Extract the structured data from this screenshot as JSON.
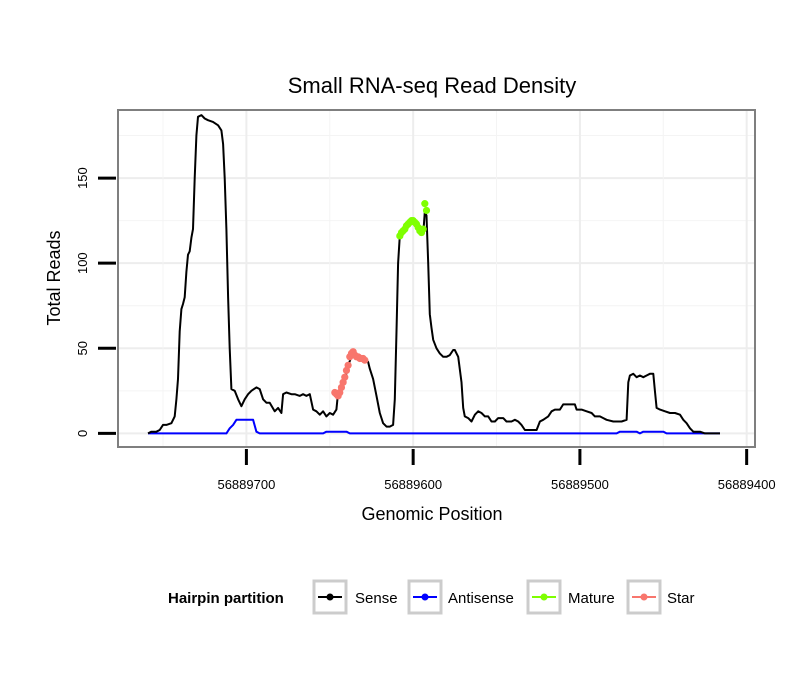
{
  "chart_data": {
    "type": "line",
    "title": "Small RNA-seq Read Density",
    "xlabel": "Genomic Position",
    "ylabel": "Total Reads",
    "x_reversed": true,
    "xlim": [
      56889777,
      56889395
    ],
    "ylim": [
      -8,
      190
    ],
    "xticks": [
      56889700,
      56889600,
      56889500,
      56889400
    ],
    "xtick_labels": [
      "56889700",
      "56889600",
      "56889500",
      "56889400"
    ],
    "yticks": [
      0,
      50,
      100,
      150
    ],
    "ytick_labels": [
      "0",
      "50",
      "100",
      "150"
    ],
    "grid": true,
    "legend": {
      "title": "Hairpin partition",
      "placement": "bottom",
      "entries": [
        {
          "name": "Sense",
          "color": "#000000"
        },
        {
          "name": "Antisense",
          "color": "#0000ff"
        },
        {
          "name": "Mature",
          "color": "#7fff00"
        },
        {
          "name": "Star",
          "color": "#f8766d"
        }
      ]
    },
    "series": [
      {
        "name": "Sense",
        "color": "#000000",
        "style": "line",
        "points": [
          [
            56889759,
            0
          ],
          [
            56889757,
            1
          ],
          [
            56889754,
            1
          ],
          [
            56889752,
            2
          ],
          [
            56889750,
            5
          ],
          [
            56889748,
            5
          ],
          [
            56889745,
            6
          ],
          [
            56889743,
            10
          ],
          [
            56889742,
            20
          ],
          [
            56889741,
            32
          ],
          [
            56889740,
            60
          ],
          [
            56889739,
            73
          ],
          [
            56889738,
            76
          ],
          [
            56889737,
            80
          ],
          [
            56889736,
            95
          ],
          [
            56889735,
            105
          ],
          [
            56889734,
            107
          ],
          [
            56889733,
            115
          ],
          [
            56889732,
            120
          ],
          [
            56889731,
            150
          ],
          [
            56889730,
            175
          ],
          [
            56889729,
            186
          ],
          [
            56889727,
            187
          ],
          [
            56889725,
            185
          ],
          [
            56889723,
            184
          ],
          [
            56889720,
            183
          ],
          [
            56889717,
            181
          ],
          [
            56889715,
            178
          ],
          [
            56889714,
            170
          ],
          [
            56889713,
            150
          ],
          [
            56889712,
            120
          ],
          [
            56889711,
            80
          ],
          [
            56889710,
            50
          ],
          [
            56889709,
            26
          ],
          [
            56889707,
            25
          ],
          [
            56889705,
            20
          ],
          [
            56889703,
            16
          ],
          [
            56889701,
            20
          ],
          [
            56889699,
            23
          ],
          [
            56889697,
            25
          ],
          [
            56889694,
            27
          ],
          [
            56889692,
            26
          ],
          [
            56889690,
            20
          ],
          [
            56889688,
            18
          ],
          [
            56889686,
            18
          ],
          [
            56889683,
            13
          ],
          [
            56889681,
            15
          ],
          [
            56889679,
            12
          ],
          [
            56889678,
            23
          ],
          [
            56889676,
            24
          ],
          [
            56889673,
            23
          ],
          [
            56889671,
            23
          ],
          [
            56889668,
            22
          ],
          [
            56889666,
            23
          ],
          [
            56889664,
            22
          ],
          [
            56889662,
            23
          ],
          [
            56889660,
            14
          ],
          [
            56889658,
            13
          ],
          [
            56889656,
            11
          ],
          [
            56889654,
            13
          ],
          [
            56889652,
            10
          ],
          [
            56889650,
            12
          ],
          [
            56889648,
            11
          ],
          [
            56889646,
            14
          ],
          [
            56889645,
            24
          ],
          [
            56889643,
            27
          ],
          [
            56889641,
            30
          ],
          [
            56889640,
            36
          ],
          [
            56889639,
            40
          ],
          [
            56889637,
            45
          ],
          [
            56889636,
            48
          ],
          [
            56889634,
            45
          ],
          [
            56889632,
            44
          ],
          [
            56889630,
            44
          ],
          [
            56889628,
            43
          ],
          [
            56889627,
            42
          ],
          [
            56889626,
            38
          ],
          [
            56889624,
            32
          ],
          [
            56889622,
            22
          ],
          [
            56889620,
            12
          ],
          [
            56889618,
            6
          ],
          [
            56889616,
            4
          ],
          [
            56889614,
            4
          ],
          [
            56889612,
            5
          ],
          [
            56889611,
            20
          ],
          [
            56889610,
            60
          ],
          [
            56889609,
            100
          ],
          [
            56889608,
            116
          ],
          [
            56889606,
            119
          ],
          [
            56889604,
            122
          ],
          [
            56889602,
            124
          ],
          [
            56889600,
            124
          ],
          [
            56889598,
            121
          ],
          [
            56889596,
            118
          ],
          [
            56889594,
            117
          ],
          [
            56889593,
            130
          ],
          [
            56889592,
            128
          ],
          [
            56889591,
            100
          ],
          [
            56889590,
            70
          ],
          [
            56889589,
            62
          ],
          [
            56889588,
            55
          ],
          [
            56889586,
            50
          ],
          [
            56889584,
            47
          ],
          [
            56889582,
            45
          ],
          [
            56889580,
            45
          ],
          [
            56889578,
            46
          ],
          [
            56889576,
            49
          ],
          [
            56889575,
            49
          ],
          [
            56889573,
            45
          ],
          [
            56889571,
            30
          ],
          [
            56889570,
            15
          ],
          [
            56889569,
            10
          ],
          [
            56889567,
            9
          ],
          [
            56889565,
            7
          ],
          [
            56889563,
            11
          ],
          [
            56889561,
            13
          ],
          [
            56889559,
            12
          ],
          [
            56889557,
            10
          ],
          [
            56889555,
            10
          ],
          [
            56889553,
            7
          ],
          [
            56889551,
            7
          ],
          [
            56889549,
            9
          ],
          [
            56889546,
            9
          ],
          [
            56889544,
            7
          ],
          [
            56889541,
            7
          ],
          [
            56889539,
            8
          ],
          [
            56889537,
            7
          ],
          [
            56889535,
            5
          ],
          [
            56889533,
            2
          ],
          [
            56889530,
            2
          ],
          [
            56889526,
            2
          ],
          [
            56889524,
            7
          ],
          [
            56889522,
            8
          ],
          [
            56889519,
            10
          ],
          [
            56889517,
            13
          ],
          [
            56889515,
            14
          ],
          [
            56889512,
            14
          ],
          [
            56889510,
            17
          ],
          [
            56889507,
            17
          ],
          [
            56889505,
            17
          ],
          [
            56889503,
            17
          ],
          [
            56889502,
            14
          ],
          [
            56889499,
            14
          ],
          [
            56889496,
            13
          ],
          [
            56889493,
            12
          ],
          [
            56889491,
            10
          ],
          [
            56889488,
            10
          ],
          [
            56889486,
            9
          ],
          [
            56889484,
            8
          ],
          [
            56889480,
            7
          ],
          [
            56889475,
            7
          ],
          [
            56889472,
            8
          ],
          [
            56889471,
            30
          ],
          [
            56889470,
            34
          ],
          [
            56889468,
            35
          ],
          [
            56889466,
            33
          ],
          [
            56889464,
            34
          ],
          [
            56889462,
            33
          ],
          [
            56889460,
            34
          ],
          [
            56889458,
            35
          ],
          [
            56889456,
            35
          ],
          [
            56889455,
            25
          ],
          [
            56889454,
            15
          ],
          [
            56889452,
            14
          ],
          [
            56889449,
            13
          ],
          [
            56889446,
            12
          ],
          [
            56889443,
            12
          ],
          [
            56889440,
            11
          ],
          [
            56889438,
            8
          ],
          [
            56889436,
            6
          ],
          [
            56889434,
            3
          ],
          [
            56889432,
            1
          ],
          [
            56889428,
            1
          ],
          [
            56889425,
            0
          ],
          [
            56889416,
            0
          ]
        ]
      },
      {
        "name": "Antisense",
        "color": "#0000ff",
        "style": "line",
        "points": [
          [
            56889759,
            0
          ],
          [
            56889712,
            0
          ],
          [
            56889710,
            3
          ],
          [
            56889708,
            5
          ],
          [
            56889706,
            8
          ],
          [
            56889696,
            8
          ],
          [
            56889694,
            1
          ],
          [
            56889692,
            0
          ],
          [
            56889654,
            0
          ],
          [
            56889652,
            1
          ],
          [
            56889640,
            1
          ],
          [
            56889638,
            0
          ],
          [
            56889478,
            0
          ],
          [
            56889476,
            1
          ],
          [
            56889466,
            1
          ],
          [
            56889464,
            0
          ],
          [
            56889462,
            1
          ],
          [
            56889450,
            1
          ],
          [
            56889448,
            0
          ],
          [
            56889416,
            0
          ]
        ]
      },
      {
        "name": "Mature",
        "color": "#7fff00",
        "style": "points",
        "points": [
          [
            56889608,
            116
          ],
          [
            56889607,
            118
          ],
          [
            56889606,
            119
          ],
          [
            56889605,
            120
          ],
          [
            56889604,
            122
          ],
          [
            56889603,
            123
          ],
          [
            56889602,
            124
          ],
          [
            56889601,
            125
          ],
          [
            56889600,
            125
          ],
          [
            56889599,
            124
          ],
          [
            56889598,
            123
          ],
          [
            56889597,
            121
          ],
          [
            56889596,
            119
          ],
          [
            56889595,
            118
          ],
          [
            56889594,
            120
          ],
          [
            56889593,
            135
          ],
          [
            56889592,
            131
          ]
        ]
      },
      {
        "name": "Star",
        "color": "#f8766d",
        "style": "points",
        "points": [
          [
            56889647,
            24
          ],
          [
            56889646,
            23
          ],
          [
            56889645,
            22
          ],
          [
            56889644,
            24
          ],
          [
            56889643,
            27
          ],
          [
            56889642,
            30
          ],
          [
            56889641,
            33
          ],
          [
            56889640,
            37
          ],
          [
            56889639,
            40
          ],
          [
            56889638,
            45
          ],
          [
            56889637,
            47
          ],
          [
            56889636,
            48
          ],
          [
            56889635,
            46
          ],
          [
            56889634,
            45
          ],
          [
            56889633,
            45
          ],
          [
            56889632,
            44
          ],
          [
            56889631,
            44
          ],
          [
            56889630,
            44
          ],
          [
            56889629,
            43
          ]
        ]
      }
    ]
  }
}
